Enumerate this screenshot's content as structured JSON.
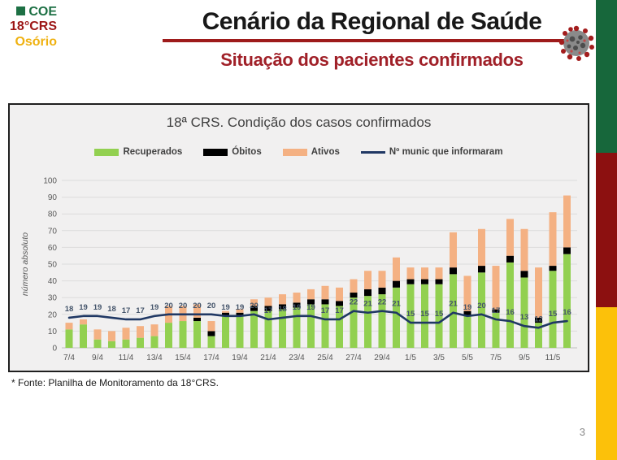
{
  "slide": {
    "logo": {
      "coe": "COE",
      "crs": "18°CRS",
      "city": "Osório"
    },
    "title": "Cenário da Regional de Saúde",
    "subtitle": "Situação dos pacientes confirmados",
    "footnote": "* Fonte: Planilha de Monitoramento da 18°CRS.",
    "page_number": "3",
    "colors": {
      "accent_red": "#9e1b1b",
      "logo_green": "#1d7044",
      "logo_red": "#9c1515",
      "logo_gold": "#efb110",
      "stripe_green": "#17673b",
      "stripe_red": "#8c1010",
      "stripe_yellow": "#fcc10a"
    }
  },
  "chart_data": {
    "type": "bar",
    "stacked": true,
    "title": "18ª CRS. Condição dos casos confirmados",
    "ylabel": "número absoluto",
    "ylim": [
      0,
      100
    ],
    "ytick_step": 10,
    "xtick_every": 2,
    "grid": true,
    "legend_position": "top",
    "categories": [
      "7/4",
      "8/4",
      "9/4",
      "10/4",
      "11/4",
      "12/4",
      "13/4",
      "14/4",
      "15/4",
      "16/4",
      "17/4",
      "18/4",
      "19/4",
      "20/4",
      "21/4",
      "22/4",
      "23/4",
      "24/4",
      "25/4",
      "26/4",
      "27/4",
      "28/4",
      "29/4",
      "30/4",
      "1/5",
      "2/5",
      "3/5",
      "4/5",
      "5/5",
      "6/5",
      "7/5",
      "8/5",
      "9/5",
      "10/5",
      "11/5",
      "12/5"
    ],
    "series": [
      {
        "name": "Recuperados",
        "kind": "bar",
        "color": "#92d050",
        "values": [
          11,
          14,
          5,
          4,
          5,
          6,
          7,
          15,
          16,
          16,
          7,
          19,
          19,
          22,
          22,
          23,
          24,
          26,
          26,
          25,
          30,
          31,
          32,
          36,
          38,
          38,
          38,
          44,
          19,
          45,
          21,
          51,
          42,
          15,
          46,
          56
        ]
      },
      {
        "name": "Óbitos",
        "kind": "bar",
        "color": "#000000",
        "values": [
          0,
          0,
          0,
          0,
          0,
          0,
          0,
          0,
          0,
          2,
          3,
          2,
          2,
          3,
          3,
          3,
          3,
          3,
          3,
          3,
          3,
          4,
          4,
          4,
          3,
          3,
          3,
          4,
          3,
          4,
          2,
          4,
          4,
          3,
          3,
          4
        ]
      },
      {
        "name": "Ativos",
        "kind": "bar",
        "color": "#f4b183",
        "values": [
          4,
          3,
          6,
          6,
          7,
          7,
          7,
          10,
          9,
          8,
          6,
          1,
          2,
          4,
          5,
          6,
          6,
          6,
          8,
          8,
          8,
          11,
          10,
          14,
          7,
          7,
          7,
          21,
          21,
          22,
          26,
          22,
          25,
          30,
          32,
          31
        ]
      },
      {
        "name": "Nº munic que informaram",
        "kind": "line",
        "color": "#203864",
        "data_labels": true,
        "values": [
          18,
          19,
          19,
          18,
          17,
          17,
          19,
          20,
          20,
          20,
          20,
          19,
          19,
          20,
          17,
          18,
          19,
          19,
          17,
          17,
          22,
          21,
          22,
          21,
          15,
          15,
          15,
          21,
          19,
          20,
          17,
          16,
          13,
          12,
          15,
          16
        ]
      }
    ],
    "label_color": "#44546a",
    "axis_text_color": "#595959",
    "gridline_color": "#dcdcdc"
  }
}
